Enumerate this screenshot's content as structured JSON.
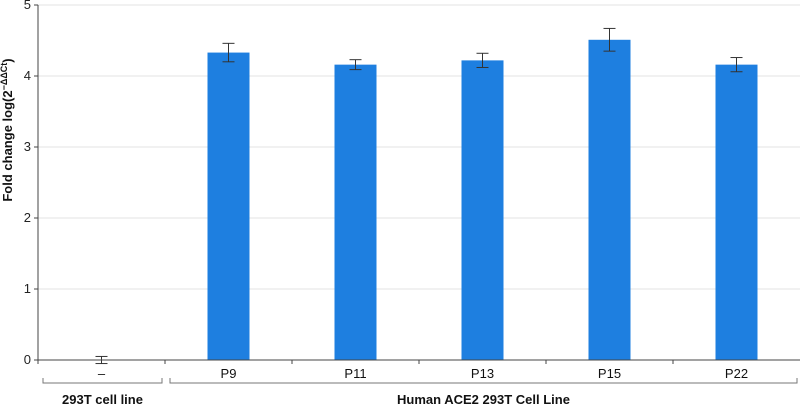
{
  "chart_data": {
    "type": "bar",
    "ylabel": "Fold change log(2^-ΔΔCt)",
    "ylabel_base": "Fold change log(2",
    "ylabel_exp": "−ΔΔCt",
    "ylabel_close": ")",
    "ylim": [
      0,
      5
    ],
    "yticks": [
      "0",
      "1",
      "2",
      "3",
      "4",
      "5"
    ],
    "grid": true,
    "categories": [
      "–",
      "P9",
      "P11",
      "P13",
      "P15",
      "P22"
    ],
    "values": [
      0.0,
      4.33,
      4.16,
      4.22,
      4.51,
      4.16
    ],
    "errors": [
      0.05,
      0.13,
      0.07,
      0.1,
      0.16,
      0.1
    ],
    "groups": [
      {
        "label": "293T cell line",
        "categories": [
          "–"
        ]
      },
      {
        "label": "Human ACE2 293T Cell Line",
        "categories": [
          "P9",
          "P11",
          "P13",
          "P15",
          "P22"
        ]
      }
    ],
    "colors": {
      "bar": "#1e7fe0",
      "grid": "#e3e3e3",
      "axis": "#444444",
      "error": "#333333"
    }
  }
}
